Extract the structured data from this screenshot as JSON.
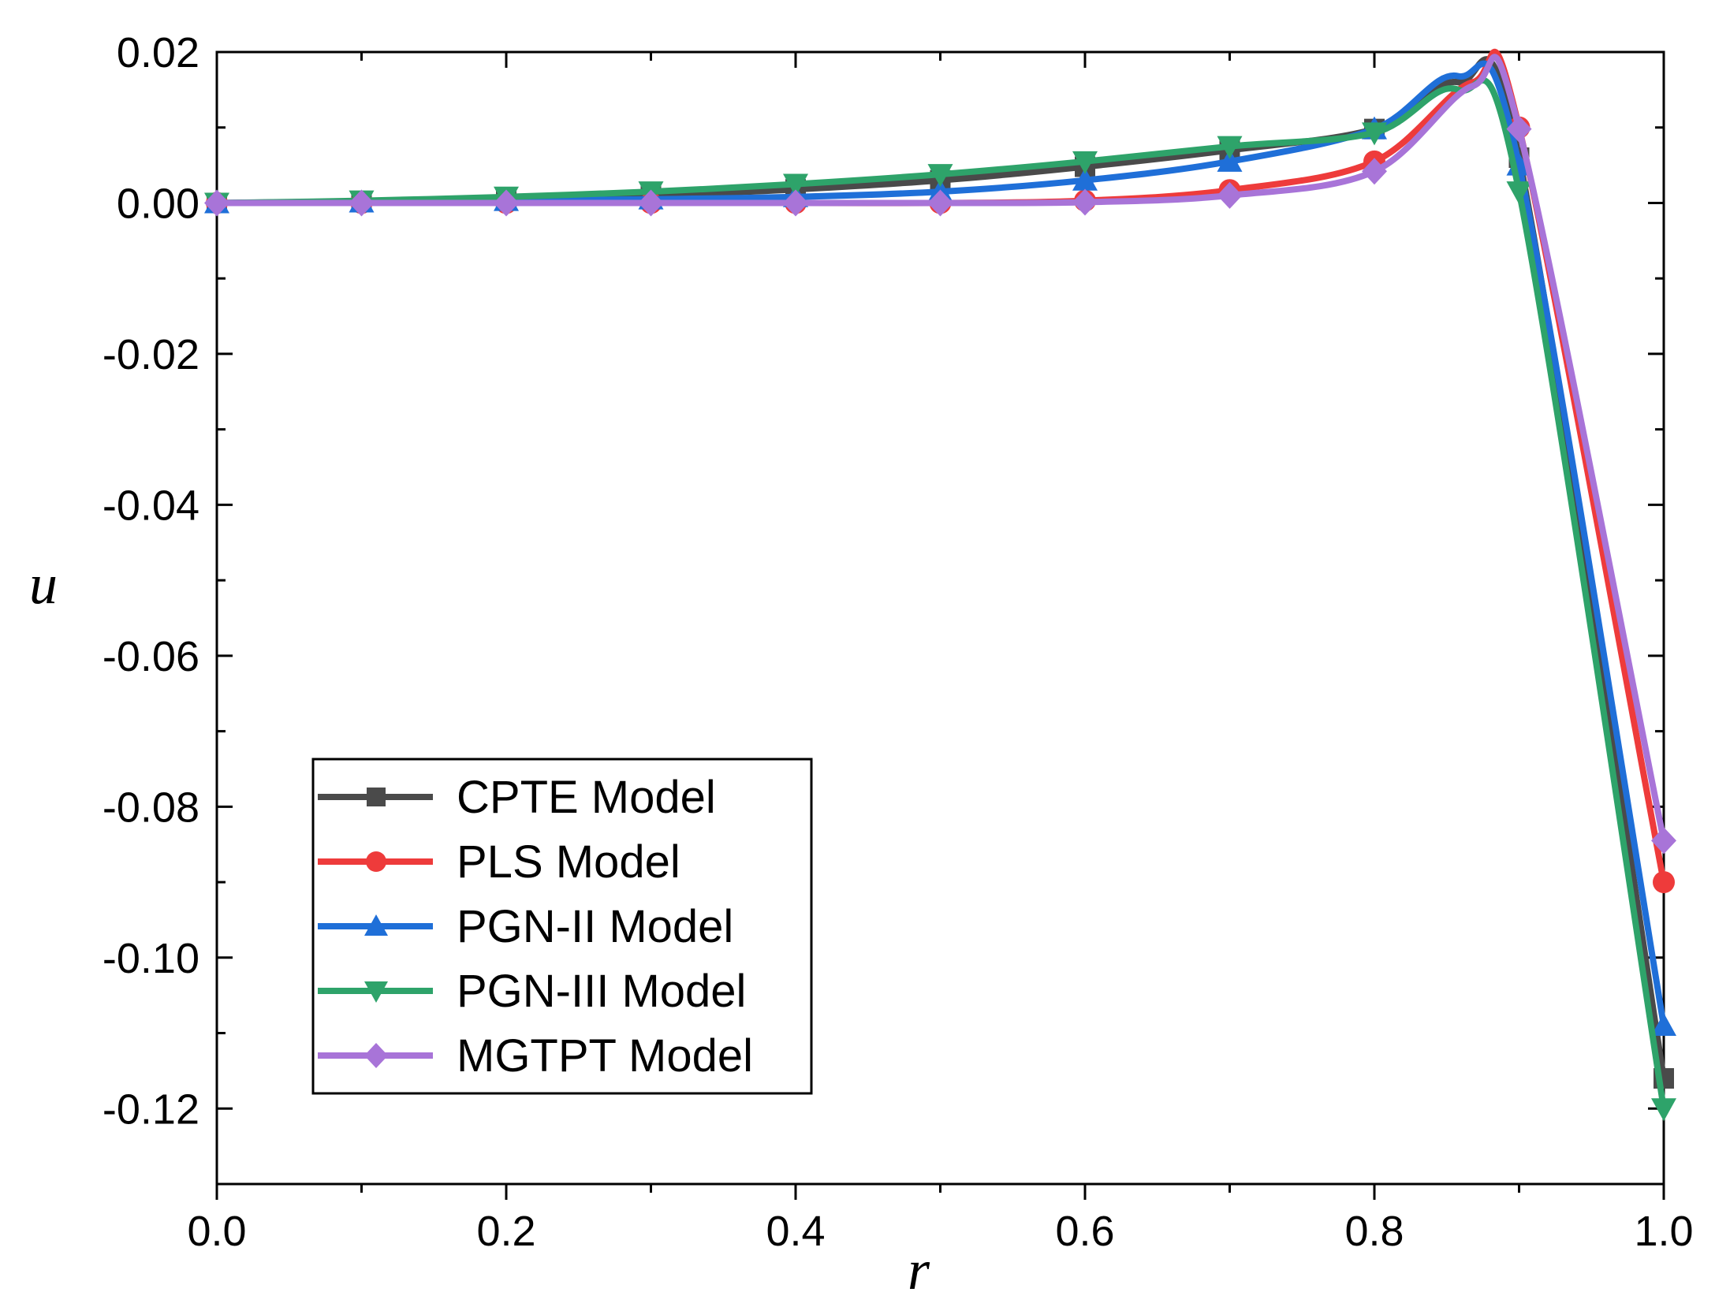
{
  "chart_data": {
    "type": "line",
    "title": "",
    "xlabel": "r",
    "ylabel": "u",
    "xlim": [
      0.0,
      1.0
    ],
    "ylim": [
      -0.13,
      0.02
    ],
    "xticks": [
      0.0,
      0.2,
      0.4,
      0.6,
      0.8,
      1.0
    ],
    "xtick_labels": [
      "0.0",
      "0.2",
      "0.4",
      "0.6",
      "0.8",
      "1.0"
    ],
    "yticks": [
      0.02,
      0.0,
      -0.02,
      -0.04,
      -0.06,
      -0.08,
      -0.1,
      -0.12
    ],
    "ytick_labels": [
      "0.02",
      "0.00",
      "-0.02",
      "-0.04",
      "-0.06",
      "-0.08",
      "-0.10",
      "-0.12"
    ],
    "grid": false,
    "legend_position": "bottom-left",
    "x": [
      0.0,
      0.1,
      0.2,
      0.3,
      0.4,
      0.5,
      0.6,
      0.7,
      0.8,
      0.9,
      1.0
    ],
    "series": [
      {
        "name": "CPTE Model",
        "color": "#4a4a4a",
        "marker": "square",
        "values": [
          0.0,
          0.0002,
          0.0005,
          0.001,
          0.0018,
          0.003,
          0.0048,
          0.007,
          0.0098,
          0.006,
          -0.116
        ],
        "peak": [
          0.858,
          0.016
        ]
      },
      {
        "name": "PLS Model",
        "color": "#ee3b3b",
        "marker": "circle",
        "values": [
          0.0,
          0.0,
          0.0,
          0.0,
          0.0,
          0.0,
          0.0003,
          0.0017,
          0.0055,
          0.01,
          -0.09
        ],
        "peak": [
          0.868,
          0.016
        ]
      },
      {
        "name": "PGN-II Model",
        "color": "#1f6fd8",
        "marker": "triangle-up",
        "values": [
          0.0,
          0.0001,
          0.0003,
          0.0005,
          0.0008,
          0.0015,
          0.003,
          0.0055,
          0.0098,
          0.005,
          -0.109
        ],
        "peak": [
          0.858,
          0.0168
        ]
      },
      {
        "name": "PGN-III Model",
        "color": "#2ea36a",
        "marker": "triangle-down",
        "values": [
          0.0,
          0.0003,
          0.0008,
          0.0015,
          0.0025,
          0.0038,
          0.0055,
          0.0075,
          0.0093,
          0.0015,
          -0.12
        ],
        "peak": [
          0.858,
          0.015
        ]
      },
      {
        "name": "MGTPT Model",
        "color": "#a874d8",
        "marker": "diamond",
        "values": [
          0.0,
          0.0,
          0.0,
          0.0,
          0.0,
          0.0,
          0.0001,
          0.001,
          0.0042,
          0.0098,
          -0.0845
        ],
        "peak": [
          0.868,
          0.0155
        ]
      }
    ]
  }
}
